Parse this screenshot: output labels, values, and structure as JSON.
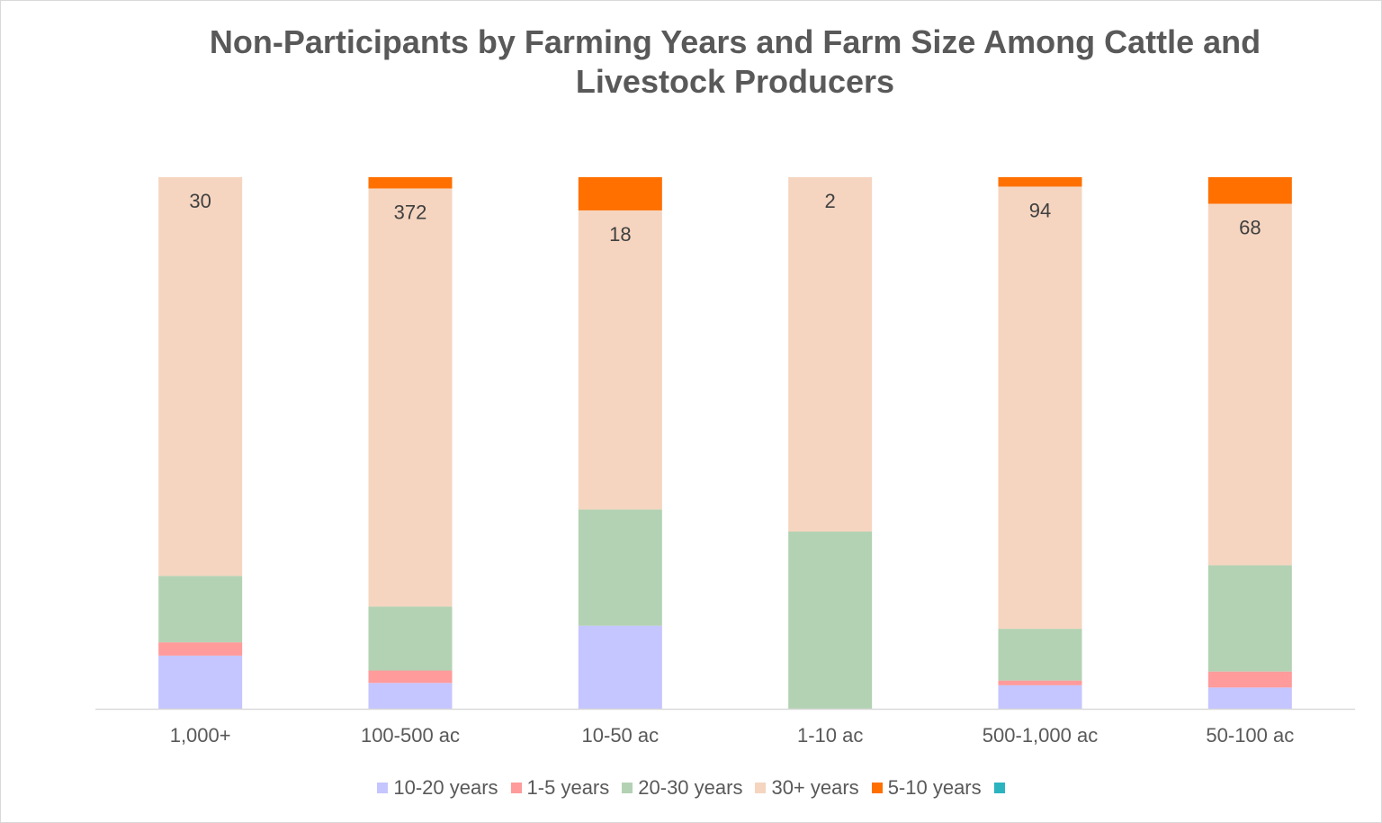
{
  "chart_data": {
    "type": "bar",
    "stacking": "percent",
    "title": "Non-Participants by Farming Years and Farm Size Among Cattle and Livestock Producers",
    "categories": [
      "1,000+",
      "100-500 ac",
      "10-50 ac",
      "1-10 ac",
      "500-1,000 ac",
      "50-100 ac"
    ],
    "series": [
      {
        "name": "10-20 years",
        "color": "#c5c5ff",
        "values": [
          4,
          23,
          5,
          0,
          5,
          4
        ]
      },
      {
        "name": "1-5 years",
        "color": "#ff9b9b",
        "values": [
          1,
          11,
          0,
          0,
          1,
          3
        ]
      },
      {
        "name": "20-30 years",
        "color": "#b3d2b3",
        "values": [
          5,
          57,
          7,
          1,
          11,
          20
        ]
      },
      {
        "name": "30+ years",
        "color": "#f5d5c0",
        "values": [
          30,
          372,
          18,
          2,
          94,
          68
        ],
        "data_labels": true
      },
      {
        "name": "5-10 years",
        "color": "#ff7000",
        "values": [
          0,
          10,
          2,
          0,
          2,
          5
        ]
      },
      {
        "name": null,
        "color": "#2bb3c0",
        "values": [
          null,
          null,
          null,
          null,
          null,
          null
        ]
      }
    ],
    "legend": "bottom"
  }
}
